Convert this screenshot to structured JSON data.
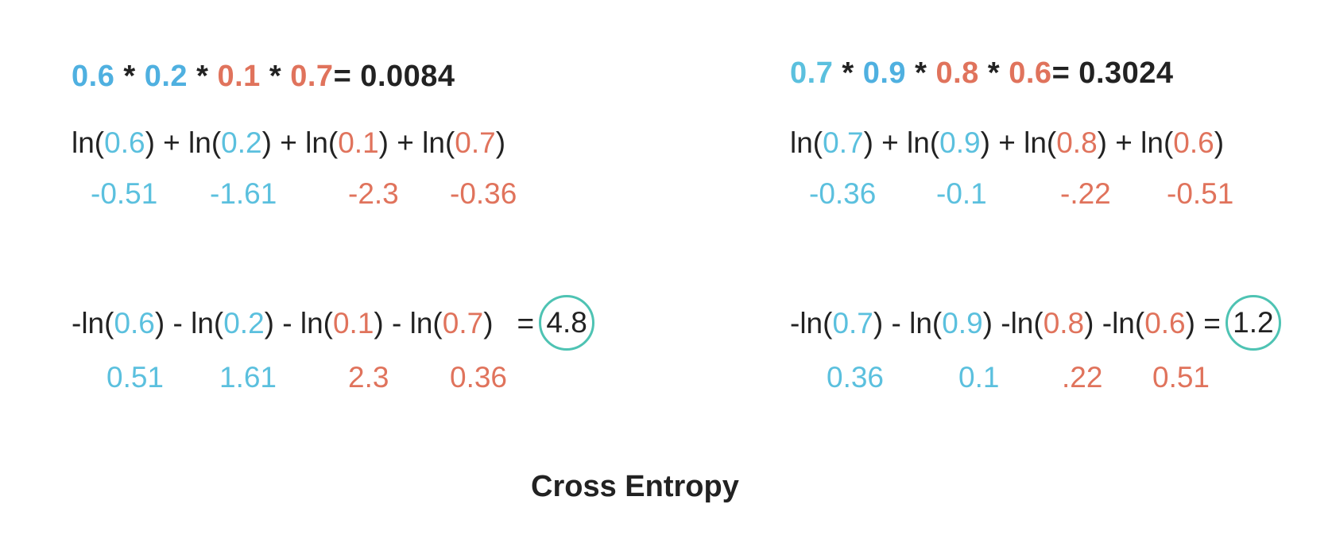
{
  "colors": {
    "correct_class": "#5bc0de",
    "incorrect_class": "#e0735c",
    "highlight_circle": "#4ec3b3",
    "text": "#222222"
  },
  "left": {
    "product": {
      "p1": "0.6",
      "op1": " * ",
      "p2": "0.2",
      "op2": " *",
      "p3": " 0.1",
      "op3": " *",
      "p4": " 0.7",
      "result": "= 0.0084"
    },
    "sum_logs": {
      "pre1": "ln(",
      "a1": "0.6",
      "mid1": ") + ln(",
      "a2": "0.2",
      "mid2": ") + ln(",
      "a3": "0.1",
      "mid3": ") + ln(",
      "a4": "0.7",
      "post": ")"
    },
    "log_values": [
      "-0.51",
      "-1.61",
      "-2.3",
      "-0.36"
    ],
    "neg_sum_logs": {
      "pre1": "-ln(",
      "a1": "0.6",
      "mid1": ") - ln(",
      "a2": "0.2",
      "mid2": ") - ln(",
      "a3": "0.1",
      "mid3": ") - ln(",
      "a4": "0.7",
      "post": ")",
      "equals": "=",
      "result": "4.8"
    },
    "neg_log_values": [
      "0.51",
      "1.61",
      "2.3",
      "0.36"
    ]
  },
  "right": {
    "product": {
      "p1": "0.7",
      "op1": " * ",
      "p2": "0.9",
      "op2": " *",
      "p3": " 0.8",
      "op3": " *",
      "p4": " 0.6",
      "result": "= 0.3024"
    },
    "sum_logs": {
      "pre1": "ln(",
      "a1": "0.7",
      "mid1": ") + ln(",
      "a2": "0.9",
      "mid2": ") + ln(",
      "a3": "0.8",
      "mid3": ") + ln(",
      "a4": "0.6",
      "post": ")"
    },
    "log_values": [
      "-0.36",
      "-0.1",
      "-.22",
      "-0.51"
    ],
    "neg_sum_logs": {
      "pre1": "-ln(",
      "a1": "0.7",
      "mid1": ") - ln(",
      "a2": "0.9",
      "mid2": ") -ln(",
      "a3": "0.8",
      "mid3": ") -ln(",
      "a4": "0.6",
      "post": ")",
      "equals": " =",
      "result": "1.2"
    },
    "neg_log_values": [
      "0.36",
      "0.1",
      ".22",
      "0.51"
    ]
  },
  "caption": "Cross Entropy"
}
